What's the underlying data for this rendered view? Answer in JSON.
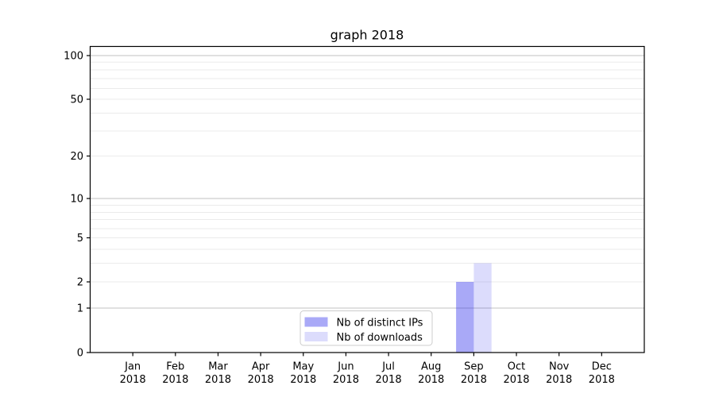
{
  "page": {
    "background": "#ffffff"
  },
  "chart_data": {
    "type": "bar",
    "title": "graph 2018",
    "x_categories": [
      "Jan",
      "Feb",
      "Mar",
      "Apr",
      "May",
      "Jun",
      "Jul",
      "Aug",
      "Sep",
      "Oct",
      "Nov",
      "Dec"
    ],
    "x_year_label": "2018",
    "series": [
      {
        "name": "Nb of distinct IPs",
        "color": "rgba(40,40,235,0.40)",
        "values": [
          0,
          0,
          0,
          0,
          0,
          0,
          0,
          0,
          2,
          0,
          0,
          0
        ]
      },
      {
        "name": "Nb of downloads",
        "color": "rgba(40,40,235,0.16)",
        "values": [
          0,
          0,
          0,
          0,
          0,
          0,
          0,
          0,
          3,
          0,
          0,
          0
        ]
      }
    ],
    "y_axis": {
      "tick_labels": [
        0,
        1,
        2,
        5,
        10,
        20,
        50,
        100
      ],
      "major_gridlines": [
        1,
        10,
        100
      ],
      "minor_gridlines": [
        2,
        3,
        4,
        5,
        6,
        7,
        8,
        9,
        20,
        30,
        40,
        50,
        60,
        70,
        80,
        90
      ],
      "scale": "symlog"
    },
    "legend": {
      "position": "lower center",
      "entries": [
        "Nb of distinct IPs",
        "Nb of downloads"
      ]
    },
    "grid": {
      "horizontal": true,
      "vertical": false
    }
  },
  "colors": {
    "background": "#ffffff",
    "bar_distinct_ips": "#a9a9f7",
    "bar_downloads": "#dcdcfb",
    "grid_major": "#c2c2c2",
    "grid_minor": "#ebebeb",
    "axis_frame": "#000000",
    "legend_border": "#cccccc",
    "legend_background": "#ffffff",
    "text": "#000000"
  }
}
